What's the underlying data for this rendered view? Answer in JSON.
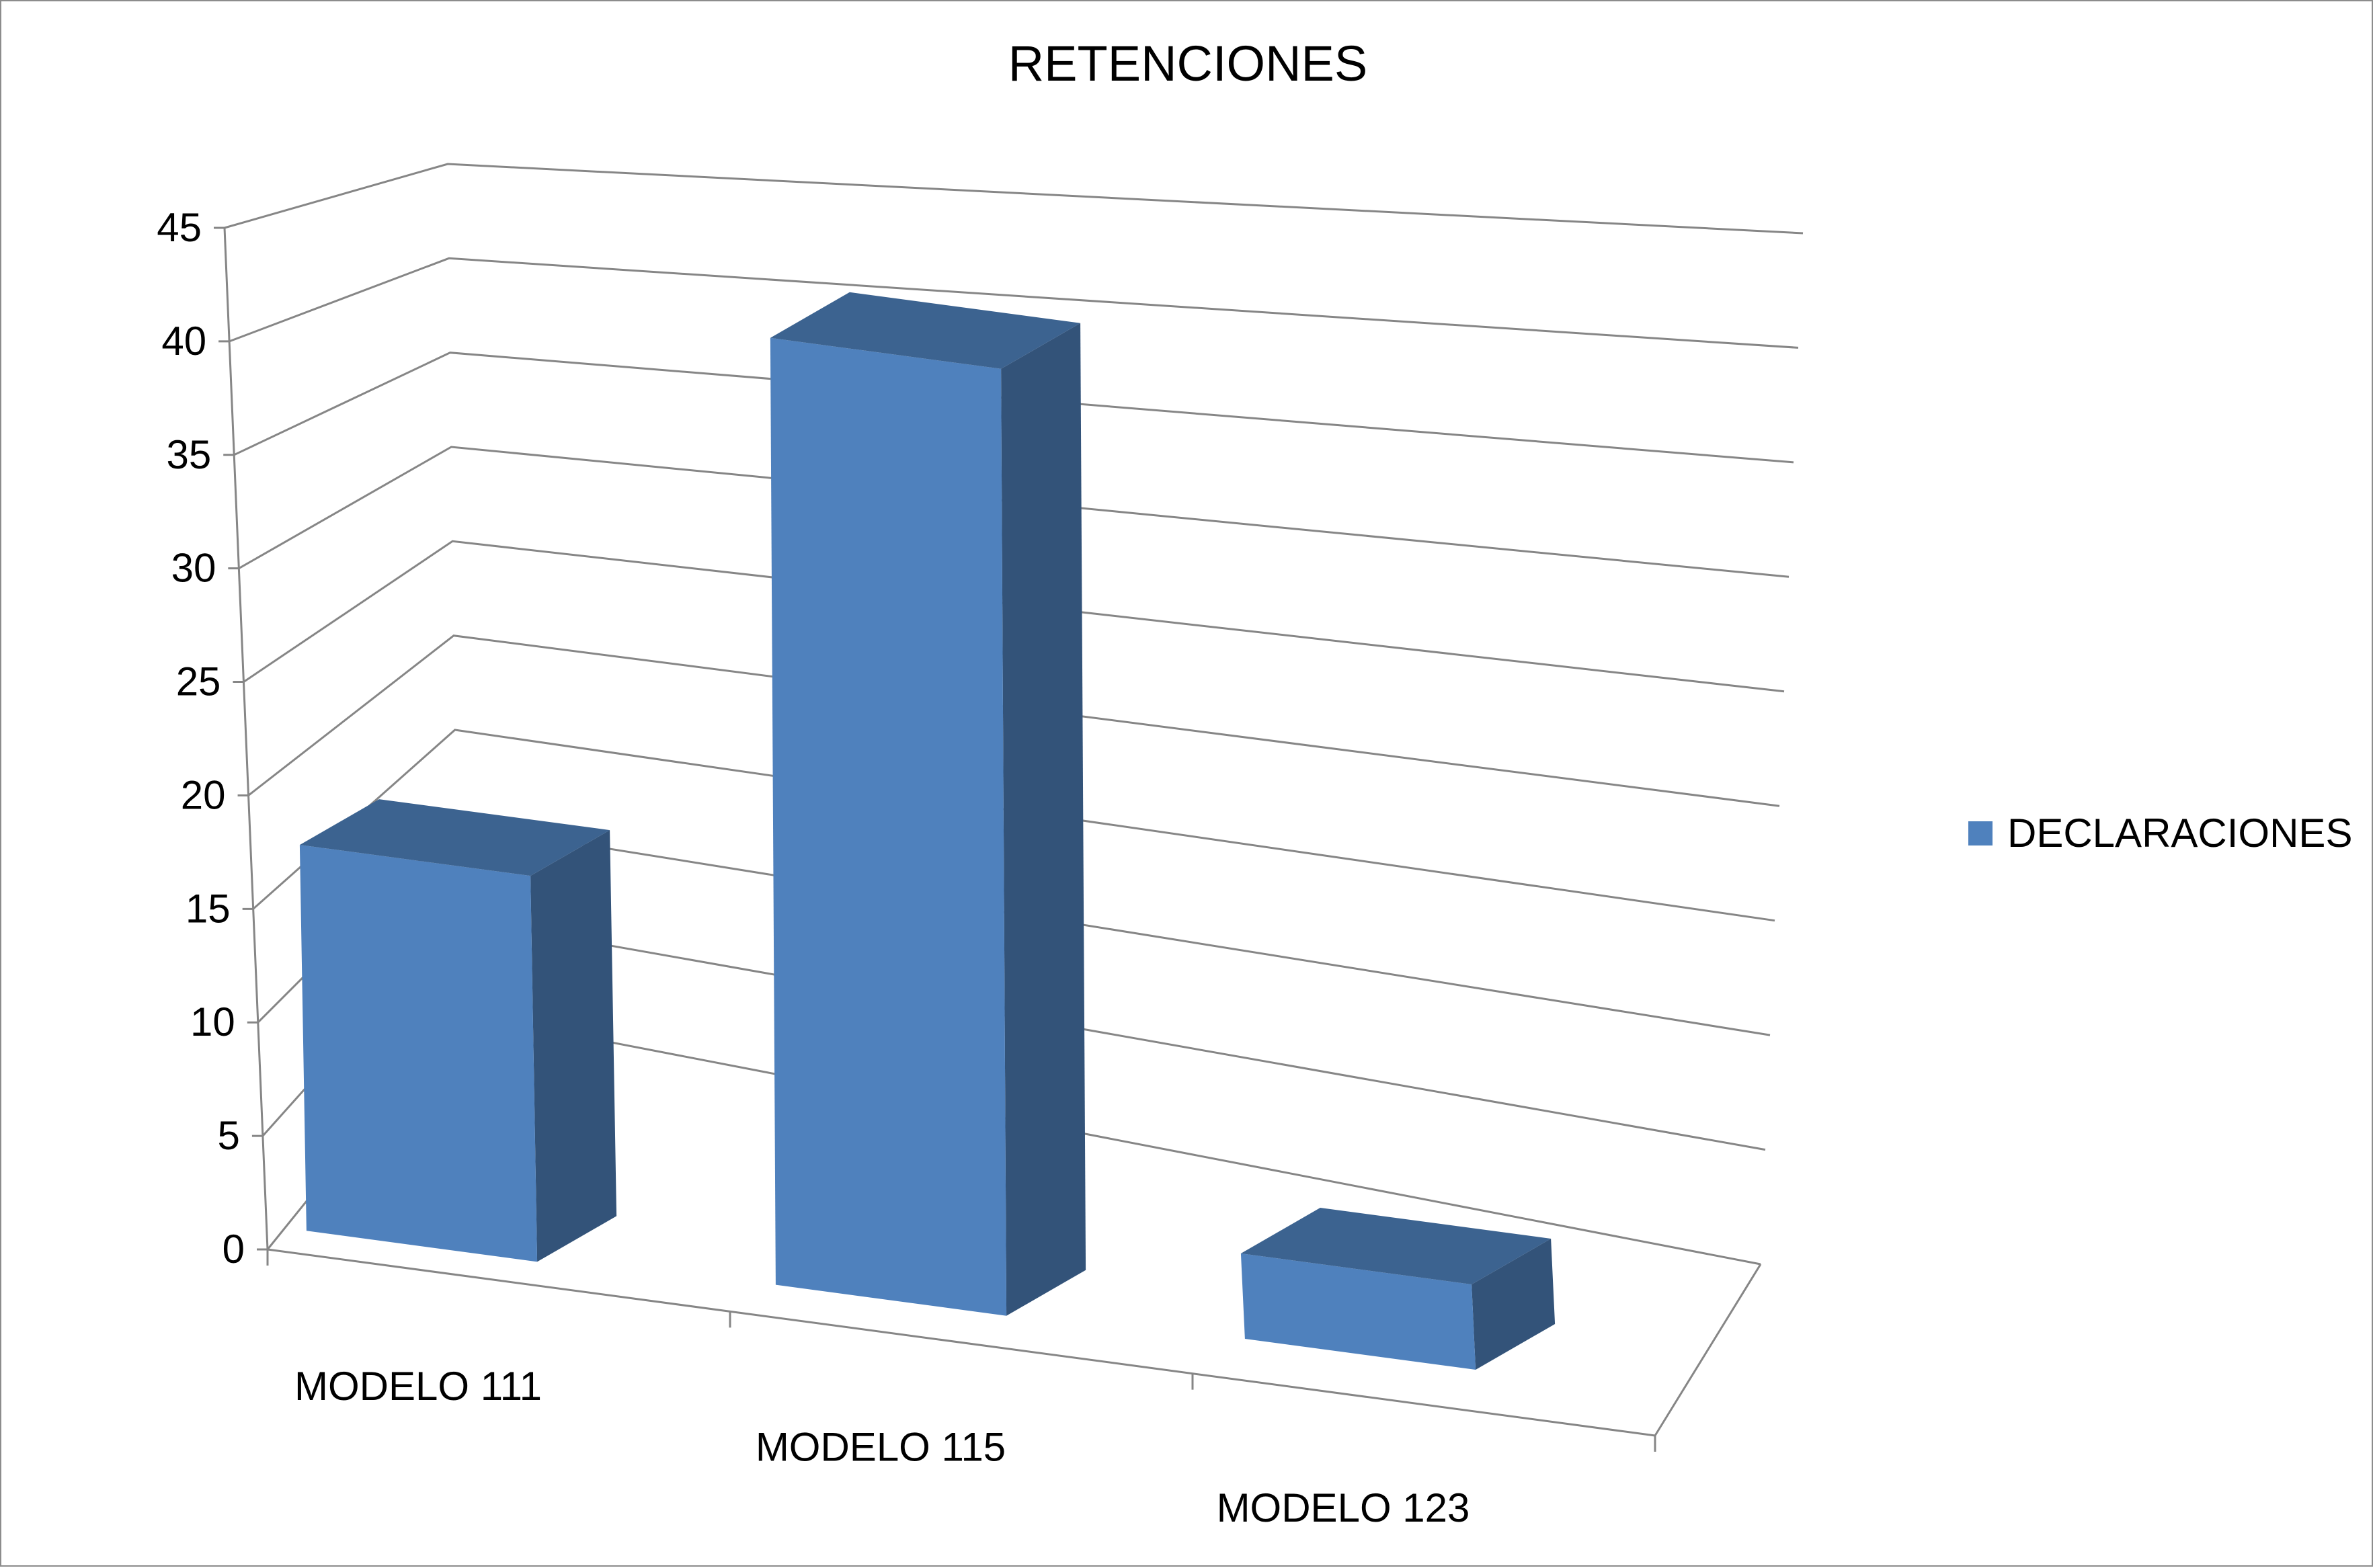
{
  "chart_data": {
    "type": "bar",
    "title": "RETENCIONES",
    "categories": [
      "MODELO 111",
      "MODELO 115",
      "MODELO 123"
    ],
    "series": [
      {
        "name": "DECLARACIONES",
        "values": [
          17,
          43,
          4
        ]
      }
    ],
    "ylim": [
      0,
      45
    ],
    "yticks": [
      0,
      5,
      10,
      15,
      20,
      25,
      30,
      35,
      40,
      45
    ],
    "xlabel": "",
    "ylabel": "",
    "grid": true,
    "legend_position": "right",
    "style": "3d-column",
    "colors": {
      "front": "#4F81BD",
      "side": "#335379",
      "top": "#3C6390",
      "grid": "#868686",
      "axis": "#868686"
    }
  }
}
